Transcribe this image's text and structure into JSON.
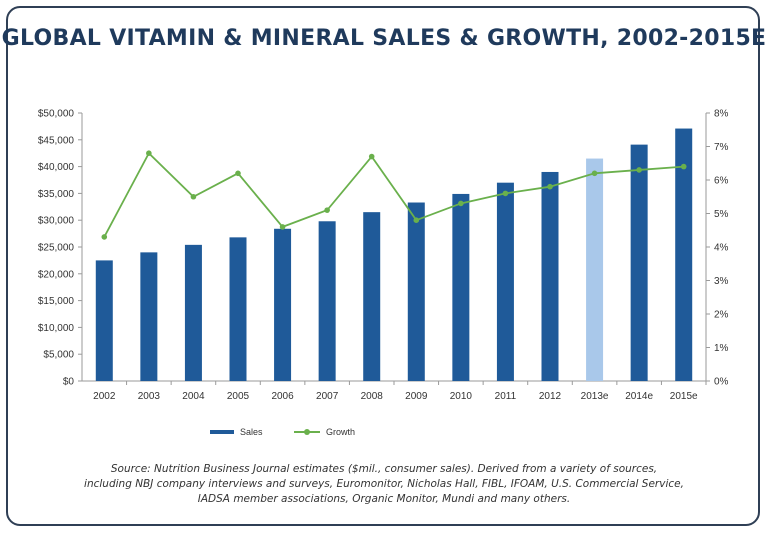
{
  "title": "GLOBAL VITAMIN & MINERAL SALES & GROWTH, 2002-2015E",
  "colors": {
    "sales": "#1f5a99",
    "sales_estimate_2013": "#a9c8ea",
    "growth": "#6ab04c",
    "frame": "#2f3f55",
    "title": "#1f3a5c"
  },
  "legend": {
    "sales_label": "Sales",
    "growth_label": "Growth",
    "placement": "bottom-center"
  },
  "source_lines": [
    "Source: Nutrition Business Journal estimates ($mil., consumer sales). Derived from a variety of sources,",
    "including NBJ company interviews and surveys, Euromonitor, Nicholas Hall, FIBL, IFOAM, U.S. Commercial Service,",
    "IADSA member associations, Organic Monitor, Mundi and many others."
  ],
  "chart_data": {
    "type": "bar",
    "categories": [
      "2002",
      "2003",
      "2004",
      "2005",
      "2006",
      "2007",
      "2008",
      "2009",
      "2010",
      "2011",
      "2012",
      "2013e",
      "2014e",
      "2015e"
    ],
    "series": [
      {
        "name": "Sales",
        "type": "bar",
        "axis": "left",
        "values": [
          22500,
          24000,
          25400,
          26800,
          28400,
          29800,
          31500,
          33300,
          34900,
          37000,
          39000,
          41500,
          44100,
          47100
        ]
      },
      {
        "name": "Growth",
        "type": "line",
        "axis": "right",
        "unit": "%",
        "values": [
          4.3,
          6.8,
          5.5,
          6.2,
          4.6,
          5.1,
          6.7,
          4.8,
          5.3,
          5.6,
          5.8,
          6.2,
          6.3,
          6.4
        ]
      }
    ],
    "y_left": {
      "ylim": [
        0,
        50000
      ],
      "ticks": [
        "$0",
        "$5,000",
        "$10,000",
        "$15,000",
        "$20,000",
        "$25,000",
        "$30,000",
        "$35,000",
        "$40,000",
        "$45,000",
        "$50,000"
      ]
    },
    "y_right": {
      "ylim": [
        0,
        8
      ],
      "ticks": [
        "0%",
        "1%",
        "2%",
        "3%",
        "4%",
        "5%",
        "6%",
        "7%",
        "8%"
      ]
    },
    "xlabel": "",
    "ylabel": "",
    "grid": false
  }
}
